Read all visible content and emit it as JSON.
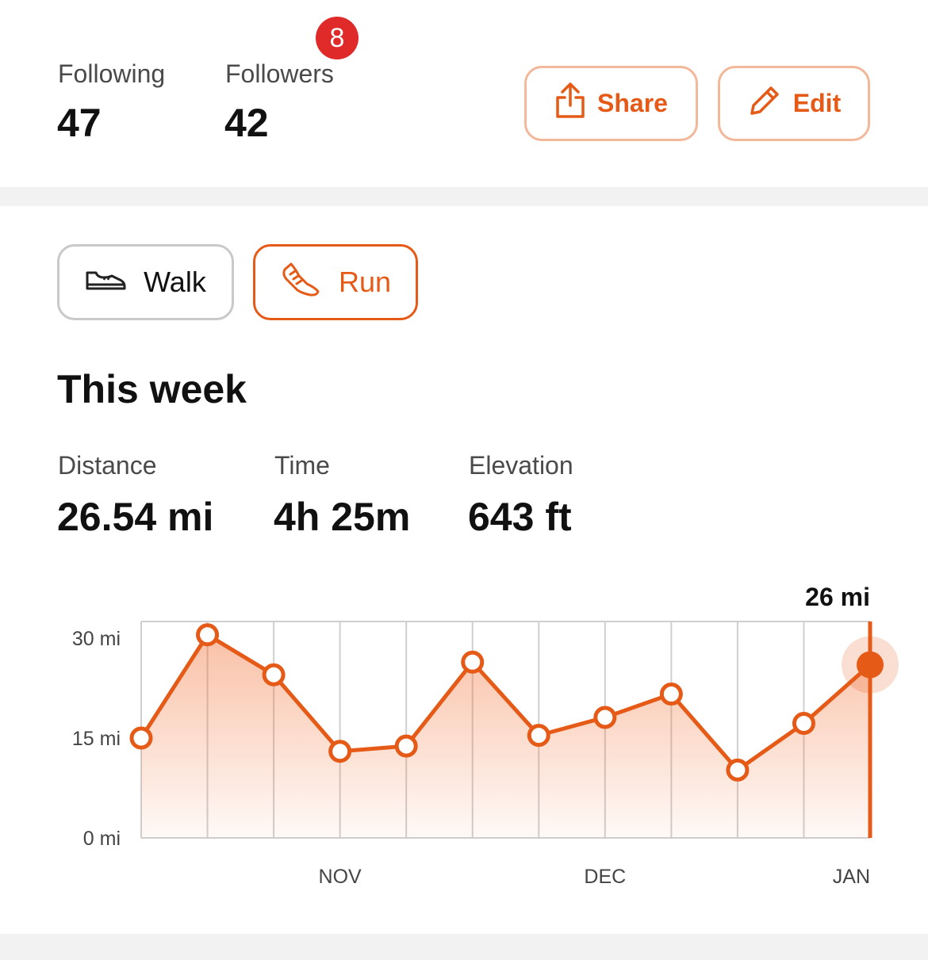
{
  "profile": {
    "following_label": "Following",
    "following_value": "47",
    "followers_label": "Followers",
    "followers_value": "42",
    "notification_count": "8"
  },
  "actions": {
    "share_label": "Share",
    "edit_label": "Edit"
  },
  "sports": {
    "walk_label": "Walk",
    "run_label": "Run",
    "selected": "Run"
  },
  "summary": {
    "title": "This week",
    "distance_label": "Distance",
    "distance_value": "26.54 mi",
    "time_label": "Time",
    "time_value": "4h 25m",
    "elevation_label": "Elevation",
    "elevation_value": "643 ft"
  },
  "colors": {
    "accent": "#e65a17",
    "badge": "#e02a2a"
  },
  "chart_data": {
    "type": "area",
    "x": [
      "",
      "",
      "",
      "NOV",
      "",
      "",
      "",
      "DEC",
      "",
      "",
      "",
      "JAN"
    ],
    "xtick_labels": [
      "NOV",
      "DEC",
      "JAN"
    ],
    "values": [
      15,
      30.5,
      24.5,
      13,
      13.8,
      26.4,
      15.4,
      18.1,
      21.6,
      10.2,
      17.2,
      26
    ],
    "ytick_labels": [
      "30 mi",
      "15 mi",
      "0 mi"
    ],
    "yticks": [
      30,
      15,
      0
    ],
    "ylim": [
      0,
      32.5
    ],
    "highlight_label": "26 mi",
    "highlight_index": 11,
    "grid": true
  }
}
